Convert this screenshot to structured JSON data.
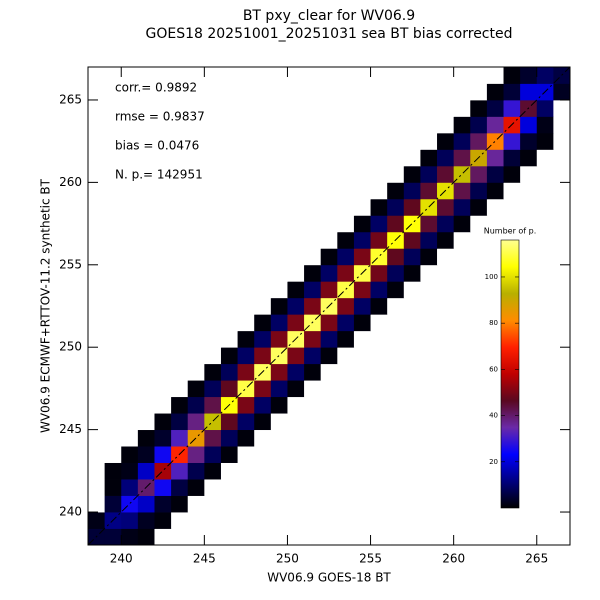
{
  "chart_data": {
    "type": "heatmap",
    "title": "BT pxy_clear for WV06.9",
    "subtitle": "GOES18 20251001_20251031 sea BT bias corrected",
    "x_label": "WV06.9 GOES-18 BT",
    "y_label": "WV06.9 ECMWF+RTTOV-11.2 synthetic BT",
    "annotations": [
      "corr.= 0.9892",
      "rmse = 0.9837",
      "bias = 0.0476",
      "N. p.=  142951"
    ],
    "xlim": [
      238,
      267
    ],
    "ylim": [
      238,
      267
    ],
    "xticks": [
      240,
      245,
      250,
      255,
      260,
      265
    ],
    "yticks": [
      240,
      245,
      250,
      255,
      260,
      265
    ],
    "x_bins": [
      238,
      239,
      240,
      241,
      242,
      243,
      244,
      245,
      246,
      247,
      248,
      249,
      250,
      251,
      252,
      253,
      254,
      255,
      256,
      257,
      258,
      259,
      260,
      261,
      262,
      263,
      264,
      265,
      266,
      267
    ],
    "y_bins": [
      238,
      239,
      240,
      241,
      242,
      243,
      244,
      245,
      246,
      247,
      248,
      249,
      250,
      251,
      252,
      253,
      254,
      255,
      256,
      257,
      258,
      259,
      260,
      261,
      262,
      263,
      264,
      265,
      266,
      267
    ],
    "counts": [
      [
        5,
        5,
        2,
        1,
        0,
        0,
        0,
        0,
        0,
        0,
        0,
        0,
        0,
        0,
        0,
        0,
        0,
        0,
        0,
        0,
        0,
        0,
        0,
        0,
        0,
        0,
        0,
        0,
        0
      ],
      [
        2,
        12,
        11,
        3,
        1,
        0,
        0,
        0,
        0,
        0,
        0,
        0,
        0,
        0,
        0,
        0,
        0,
        0,
        0,
        0,
        0,
        0,
        0,
        0,
        0,
        0,
        0,
        0,
        0
      ],
      [
        0,
        5,
        25,
        18,
        4,
        1,
        0,
        0,
        0,
        0,
        0,
        0,
        0,
        0,
        0,
        0,
        0,
        0,
        0,
        0,
        0,
        0,
        0,
        0,
        0,
        0,
        0,
        0,
        0
      ],
      [
        0,
        1,
        11,
        40,
        25,
        6,
        1,
        0,
        0,
        0,
        0,
        0,
        0,
        0,
        0,
        0,
        0,
        0,
        0,
        0,
        0,
        0,
        0,
        0,
        0,
        0,
        0,
        0,
        0
      ],
      [
        0,
        1,
        2,
        18,
        55,
        32,
        7,
        1,
        0,
        0,
        0,
        0,
        0,
        0,
        0,
        0,
        0,
        0,
        0,
        0,
        0,
        0,
        0,
        0,
        0,
        0,
        0,
        0,
        0
      ],
      [
        0,
        0,
        1,
        3,
        25,
        70,
        38,
        8,
        1,
        0,
        0,
        0,
        0,
        0,
        0,
        0,
        0,
        0,
        0,
        0,
        0,
        0,
        0,
        0,
        0,
        0,
        0,
        0,
        0
      ],
      [
        0,
        0,
        0,
        1,
        4,
        32,
        85,
        43,
        8,
        1,
        0,
        0,
        0,
        0,
        0,
        0,
        0,
        0,
        0,
        0,
        0,
        0,
        0,
        0,
        0,
        0,
        0,
        0,
        0
      ],
      [
        0,
        0,
        0,
        0,
        1,
        6,
        38,
        95,
        47,
        9,
        1,
        0,
        0,
        0,
        0,
        0,
        0,
        0,
        0,
        0,
        0,
        0,
        0,
        0,
        0,
        0,
        0,
        0,
        0
      ],
      [
        0,
        0,
        0,
        0,
        0,
        1,
        7,
        43,
        105,
        50,
        9,
        1,
        0,
        0,
        0,
        0,
        0,
        0,
        0,
        0,
        0,
        0,
        0,
        0,
        0,
        0,
        0,
        0,
        0
      ],
      [
        0,
        0,
        0,
        0,
        0,
        0,
        1,
        8,
        47,
        110,
        50,
        9,
        1,
        0,
        0,
        0,
        0,
        0,
        0,
        0,
        0,
        0,
        0,
        0,
        0,
        0,
        0,
        0,
        0
      ],
      [
        0,
        0,
        0,
        0,
        0,
        0,
        0,
        1,
        8,
        50,
        112,
        50,
        9,
        1,
        0,
        0,
        0,
        0,
        0,
        0,
        0,
        0,
        0,
        0,
        0,
        0,
        0,
        0,
        0
      ],
      [
        0,
        0,
        0,
        0,
        0,
        0,
        0,
        0,
        1,
        9,
        50,
        112,
        50,
        9,
        1,
        0,
        0,
        0,
        0,
        0,
        0,
        0,
        0,
        0,
        0,
        0,
        0,
        0,
        0
      ],
      [
        0,
        0,
        0,
        0,
        0,
        0,
        0,
        0,
        0,
        1,
        9,
        50,
        112,
        50,
        9,
        1,
        0,
        0,
        0,
        0,
        0,
        0,
        0,
        0,
        0,
        0,
        0,
        0,
        0
      ],
      [
        0,
        0,
        0,
        0,
        0,
        0,
        0,
        0,
        0,
        0,
        1,
        9,
        50,
        112,
        50,
        9,
        1,
        0,
        0,
        0,
        0,
        0,
        0,
        0,
        0,
        0,
        0,
        0,
        0
      ],
      [
        0,
        0,
        0,
        0,
        0,
        0,
        0,
        0,
        0,
        0,
        0,
        1,
        9,
        50,
        112,
        50,
        9,
        1,
        0,
        0,
        0,
        0,
        0,
        0,
        0,
        0,
        0,
        0,
        0
      ],
      [
        0,
        0,
        0,
        0,
        0,
        0,
        0,
        0,
        0,
        0,
        0,
        0,
        1,
        9,
        50,
        110,
        50,
        9,
        1,
        0,
        0,
        0,
        0,
        0,
        0,
        0,
        0,
        0,
        0
      ],
      [
        0,
        0,
        0,
        0,
        0,
        0,
        0,
        0,
        0,
        0,
        0,
        0,
        0,
        1,
        9,
        50,
        110,
        49,
        8,
        1,
        0,
        0,
        0,
        0,
        0,
        0,
        0,
        0,
        0
      ],
      [
        0,
        0,
        0,
        0,
        0,
        0,
        0,
        0,
        0,
        0,
        0,
        0,
        0,
        0,
        1,
        9,
        50,
        108,
        47,
        8,
        1,
        0,
        0,
        0,
        0,
        0,
        0,
        0,
        0
      ],
      [
        0,
        0,
        0,
        0,
        0,
        0,
        0,
        0,
        0,
        0,
        0,
        0,
        0,
        0,
        0,
        1,
        9,
        49,
        105,
        47,
        8,
        1,
        0,
        0,
        0,
        0,
        0,
        0,
        0
      ],
      [
        0,
        0,
        0,
        0,
        0,
        0,
        0,
        0,
        0,
        0,
        0,
        0,
        0,
        0,
        0,
        0,
        1,
        9,
        47,
        105,
        45,
        8,
        1,
        0,
        0,
        0,
        0,
        0,
        0
      ],
      [
        0,
        0,
        0,
        0,
        0,
        0,
        0,
        0,
        0,
        0,
        0,
        0,
        0,
        0,
        0,
        0,
        0,
        1,
        8,
        47,
        100,
        45,
        8,
        1,
        0,
        0,
        0,
        0,
        0
      ],
      [
        0,
        0,
        0,
        0,
        0,
        0,
        0,
        0,
        0,
        0,
        0,
        0,
        0,
        0,
        0,
        0,
        0,
        0,
        1,
        8,
        45,
        100,
        43,
        7,
        1,
        0,
        0,
        0,
        0
      ],
      [
        0,
        0,
        0,
        0,
        0,
        0,
        0,
        0,
        0,
        0,
        0,
        0,
        0,
        0,
        0,
        0,
        0,
        0,
        0,
        1,
        8,
        45,
        95,
        41,
        6,
        1,
        0,
        0,
        0
      ],
      [
        0,
        0,
        0,
        0,
        0,
        0,
        0,
        0,
        0,
        0,
        0,
        0,
        0,
        0,
        0,
        0,
        0,
        0,
        0,
        0,
        1,
        8,
        43,
        90,
        36,
        5,
        1,
        0,
        0
      ],
      [
        0,
        0,
        0,
        0,
        0,
        0,
        0,
        0,
        0,
        0,
        0,
        0,
        0,
        0,
        0,
        0,
        0,
        0,
        0,
        0,
        0,
        1,
        8,
        41,
        80,
        29,
        4,
        1,
        0
      ],
      [
        0,
        0,
        0,
        0,
        0,
        0,
        0,
        0,
        0,
        0,
        0,
        0,
        0,
        0,
        0,
        0,
        0,
        0,
        0,
        0,
        0,
        0,
        1,
        7,
        36,
        65,
        20,
        2,
        0
      ],
      [
        0,
        0,
        0,
        0,
        0,
        0,
        0,
        0,
        0,
        0,
        0,
        0,
        0,
        0,
        0,
        0,
        0,
        0,
        0,
        0,
        0,
        0,
        0,
        1,
        6,
        29,
        45,
        9,
        0
      ],
      [
        0,
        0,
        0,
        0,
        0,
        0,
        0,
        0,
        0,
        0,
        0,
        0,
        0,
        0,
        0,
        0,
        0,
        0,
        0,
        0,
        0,
        0,
        0,
        0,
        1,
        5,
        20,
        20,
        3
      ],
      [
        0,
        0,
        0,
        0,
        0,
        0,
        0,
        0,
        0,
        0,
        0,
        0,
        0,
        0,
        0,
        0,
        0,
        0,
        0,
        0,
        0,
        0,
        0,
        0,
        0,
        1,
        4,
        9,
        6
      ]
    ],
    "colorbar_label": "Number of p.",
    "clim": [
      0,
      116
    ],
    "cticks": [
      20,
      40,
      60,
      80,
      100
    ],
    "colormap": [
      "#000000",
      "#000080",
      "#0000ff",
      "#6a2aa8",
      "#5a0820",
      "#c00000",
      "#ff2000",
      "#ff8c00",
      "#b8b000",
      "#ffff00",
      "#ffff90"
    ],
    "zero_color": "#ffffff",
    "identity_line": true
  }
}
